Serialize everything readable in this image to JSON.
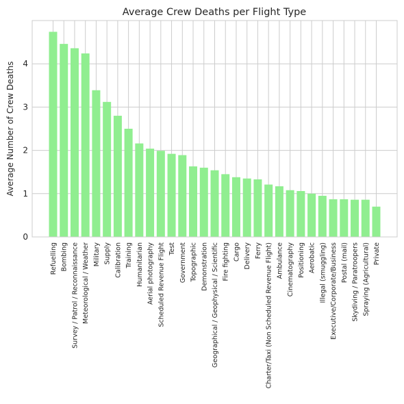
{
  "chart_data": {
    "type": "bar",
    "title": "Average Crew Deaths per Flight Type",
    "xlabel": "",
    "ylabel": "Average Number of Crew Deaths",
    "ylim": [
      0,
      5
    ],
    "yticks": [
      0,
      1,
      2,
      3,
      4
    ],
    "grid": true,
    "bar_color": "#90ee90",
    "categories": [
      "Refuelling",
      "Bombing",
      "Survey / Patrol / Reconnaissance",
      "Meteorological / Weather",
      "Military",
      "Supply",
      "Calibration",
      "Training",
      "Humanitarian",
      "Aerial photography",
      "Scheduled Revenue Flight",
      "Test",
      "Government",
      "Topographic",
      "Demonstration",
      "Geographical / Geophysical / Scientific",
      "Fire fighting",
      "Cargo",
      "Delivery",
      "Ferry",
      "Charter/Taxi (Non Scheduled Revenue Flight)",
      "Ambulance",
      "Cinematography",
      "Positioning",
      "Aerobatic",
      "Illegal (smuggling)",
      "Executive/Corporate/Business",
      "Postal (mail)",
      "Skydiving / Paratroopers",
      "Spraying (Agricultural)",
      "Private"
    ],
    "values": [
      4.74,
      4.46,
      4.36,
      4.24,
      3.39,
      3.12,
      2.8,
      2.5,
      2.16,
      2.04,
      1.99,
      1.92,
      1.89,
      1.63,
      1.6,
      1.54,
      1.45,
      1.38,
      1.35,
      1.33,
      1.21,
      1.17,
      1.08,
      1.06,
      1.0,
      0.95,
      0.87,
      0.87,
      0.86,
      0.86,
      0.7
    ]
  }
}
